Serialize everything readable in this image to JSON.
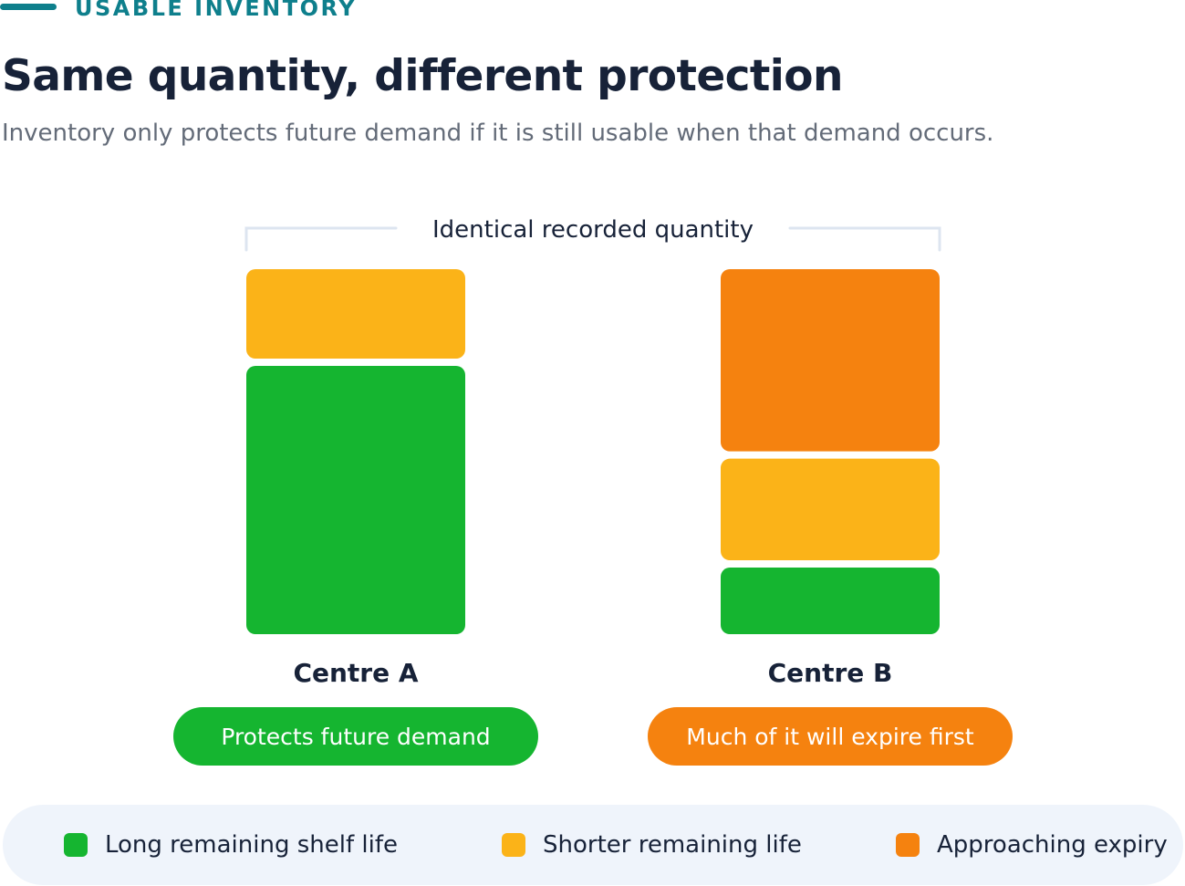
{
  "header": {
    "eyebrow": "USABLE INVENTORY",
    "title": "Same quantity, different protection",
    "subtitle": "Inventory only protects future demand if it is still usable when that demand occurs."
  },
  "colors": {
    "accent": "#0e7f8c",
    "long": "#15b530",
    "shorter": "#fbb318",
    "expiry": "#f5820f",
    "bracket": "#dde5f0",
    "legend_bg": "#eff4fb"
  },
  "chart_data": {
    "type": "bar",
    "stacked": true,
    "annotation": "Identical recorded quantity",
    "categories": [
      "Centre A",
      "Centre B"
    ],
    "series": [
      {
        "name": "Long remaining shelf life",
        "key": "long",
        "values": [
          75,
          19
        ]
      },
      {
        "name": "Shorter remaining life",
        "key": "shorter",
        "values": [
          25,
          29
        ]
      },
      {
        "name": "Approaching expiry",
        "key": "expiry",
        "values": [
          0,
          52
        ]
      }
    ],
    "status": [
      {
        "label": "Protects future demand",
        "key": "long"
      },
      {
        "label": "Much of it will expire first",
        "key": "expiry"
      }
    ],
    "legend_position": "bottom",
    "grid": false,
    "axes": false
  }
}
